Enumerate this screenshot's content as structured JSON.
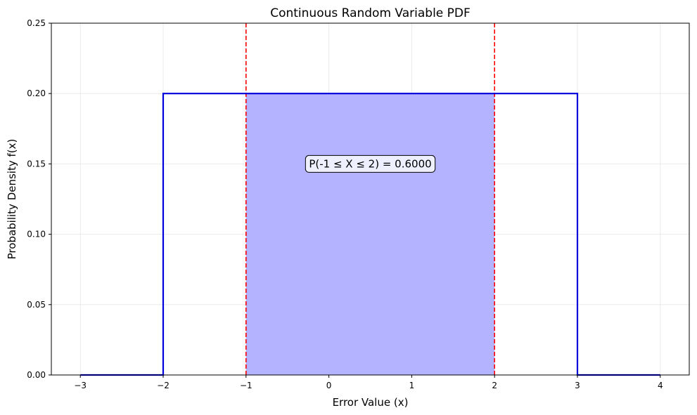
{
  "chart_data": {
    "type": "line",
    "title": "Continuous Random Variable PDF",
    "xlabel": "Error Value (x)",
    "ylabel": "Probability Density f(x)",
    "xlim": [
      -3.35,
      4.35
    ],
    "ylim": [
      0,
      0.25
    ],
    "x_ticks": [
      -3,
      -2,
      -1,
      0,
      1,
      2,
      3,
      4
    ],
    "x_tick_labels": [
      "−3",
      "−2",
      "−1",
      "0",
      "1",
      "2",
      "3",
      "4"
    ],
    "y_ticks": [
      0,
      0.05,
      0.1,
      0.15,
      0.2,
      0.25
    ],
    "y_tick_labels": [
      "0.00",
      "0.05",
      "0.10",
      "0.15",
      "0.20",
      "0.25"
    ],
    "grid": true,
    "series": [
      {
        "x": [
          -3,
          -2,
          -2,
          3,
          3,
          4
        ],
        "y": [
          0,
          0,
          0.2,
          0.2,
          0,
          0
        ],
        "color": "#0000dd"
      }
    ],
    "shaded_region": {
      "x_from": -1,
      "x_to": 2,
      "y": 0.2,
      "color": "#b3b3ff"
    },
    "vertical_lines": [
      {
        "x": -1,
        "color": "#ff0000",
        "style": "dashed"
      },
      {
        "x": 2,
        "color": "#ff0000",
        "style": "dashed"
      }
    ],
    "annotation": {
      "text": "P(-1 ≤ X ≤ 2) = 0.6000",
      "x": 0.5,
      "y": 0.15
    }
  }
}
